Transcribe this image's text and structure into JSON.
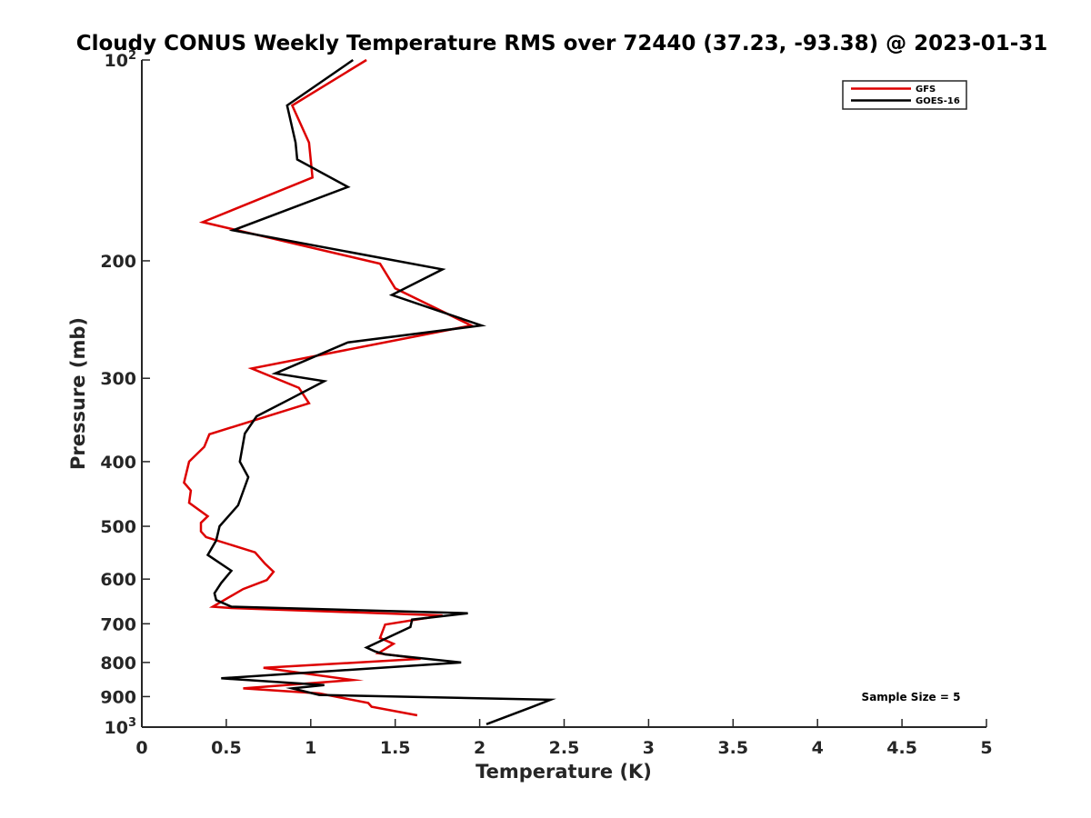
{
  "chart_data": {
    "type": "line",
    "title": "Cloudy CONUS Weekly Temperature RMS over 72440 (37.23, -93.38) @ 2023-01-31",
    "xlabel": "Temperature (K)",
    "ylabel": "Pressure (mb)",
    "xlim": [
      0,
      5
    ],
    "ylim": [
      1000,
      100
    ],
    "yscale": "log",
    "y_reversed": true,
    "x_ticks": [
      "0",
      "0.5",
      "1",
      "1.5",
      "2",
      "2.5",
      "3",
      "3.5",
      "4",
      "4.5",
      "5"
    ],
    "y_ticks": [
      {
        "value": 100,
        "base": "10",
        "exp": "2"
      },
      {
        "value": 200,
        "label": "200"
      },
      {
        "value": 300,
        "label": "300"
      },
      {
        "value": 400,
        "label": "400"
      },
      {
        "value": 500,
        "label": "500"
      },
      {
        "value": 600,
        "label": "600"
      },
      {
        "value": 700,
        "label": "700"
      },
      {
        "value": 800,
        "label": "800"
      },
      {
        "value": 900,
        "label": "900"
      },
      {
        "value": 1000,
        "base": "10",
        "exp": "3"
      }
    ],
    "legend_position": "top-right",
    "grid": false,
    "annotation": "Sample Size = 5",
    "series": [
      {
        "name": "GFS",
        "color": "#dd0000",
        "points": [
          [
            1.33,
            100
          ],
          [
            0.89,
            117
          ],
          [
            0.99,
            133
          ],
          [
            1.01,
            150
          ],
          [
            0.36,
            175
          ],
          [
            1.41,
            202
          ],
          [
            1.5,
            220
          ],
          [
            1.95,
            250
          ],
          [
            0.65,
            290
          ],
          [
            0.93,
            310
          ],
          [
            0.99,
            327
          ],
          [
            0.4,
            364
          ],
          [
            0.37,
            380
          ],
          [
            0.28,
            400
          ],
          [
            0.25,
            430
          ],
          [
            0.29,
            442
          ],
          [
            0.28,
            461
          ],
          [
            0.39,
            483
          ],
          [
            0.35,
            494
          ],
          [
            0.35,
            509
          ],
          [
            0.38,
            519
          ],
          [
            0.67,
            547
          ],
          [
            0.73,
            569
          ],
          [
            0.78,
            585
          ],
          [
            0.74,
            602
          ],
          [
            0.6,
            621
          ],
          [
            0.42,
            660
          ],
          [
            0.53,
            663
          ],
          [
            1.78,
            680
          ],
          [
            1.44,
            702
          ],
          [
            1.41,
            735
          ],
          [
            1.49,
            750
          ],
          [
            1.4,
            775
          ],
          [
            1.65,
            790
          ],
          [
            0.72,
            815
          ],
          [
            1.25,
            850
          ],
          [
            0.6,
            875
          ],
          [
            1.05,
            890
          ],
          [
            1.34,
            920
          ],
          [
            1.36,
            932
          ],
          [
            1.63,
            960
          ]
        ]
      },
      {
        "name": "GOES-16",
        "color": "#000000",
        "points": [
          [
            1.25,
            100
          ],
          [
            0.86,
            117
          ],
          [
            0.91,
            133
          ],
          [
            0.92,
            141
          ],
          [
            1.22,
            155
          ],
          [
            0.54,
            180
          ],
          [
            1.78,
            206
          ],
          [
            1.48,
            225
          ],
          [
            2.01,
            250
          ],
          [
            1.22,
            265
          ],
          [
            0.79,
            295
          ],
          [
            1.08,
            303
          ],
          [
            0.88,
            322
          ],
          [
            0.68,
            342
          ],
          [
            0.61,
            363
          ],
          [
            0.58,
            400
          ],
          [
            0.63,
            422
          ],
          [
            0.57,
            465
          ],
          [
            0.46,
            500
          ],
          [
            0.44,
            525
          ],
          [
            0.39,
            552
          ],
          [
            0.53,
            583
          ],
          [
            0.47,
            608
          ],
          [
            0.43,
            630
          ],
          [
            0.44,
            645
          ],
          [
            0.53,
            660
          ],
          [
            1.93,
            675
          ],
          [
            1.6,
            690
          ],
          [
            1.59,
            708
          ],
          [
            1.33,
            760
          ],
          [
            1.38,
            770
          ],
          [
            1.44,
            778
          ],
          [
            1.89,
            800
          ],
          [
            0.47,
            845
          ],
          [
            1.08,
            865
          ],
          [
            0.89,
            875
          ],
          [
            1.05,
            895
          ],
          [
            2.42,
            910
          ],
          [
            2.3,
            935
          ],
          [
            2.04,
            990
          ]
        ]
      }
    ]
  }
}
